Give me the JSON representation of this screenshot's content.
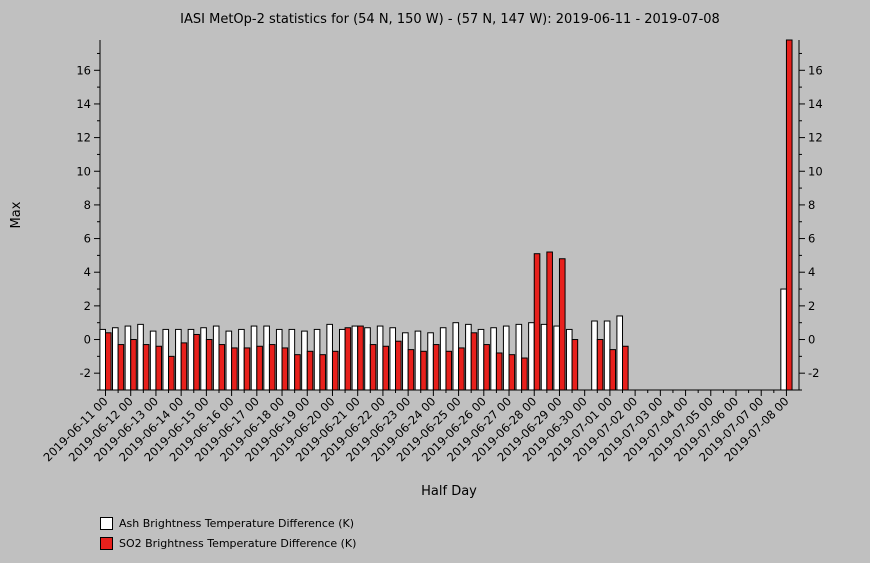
{
  "chart_data": {
    "type": "bar",
    "title": "IASI MetOp-2 statistics for (54 N, 150 W) - (57 N, 147 W): 2019-06-11 - 2019-07-08",
    "xlabel": "Half Day",
    "ylabel": "Max",
    "ylim": [
      -3,
      17.8
    ],
    "yticks": [
      -2,
      0,
      2,
      4,
      6,
      8,
      10,
      12,
      14,
      16
    ],
    "x_tick_labels": [
      "2019-06-11 00",
      "2019-06-12 00",
      "2019-06-13 00",
      "2019-06-14 00",
      "2019-06-15 00",
      "2019-06-16 00",
      "2019-06-17 00",
      "2019-06-18 00",
      "2019-06-19 00",
      "2019-06-20 00",
      "2019-06-21 00",
      "2019-06-22 00",
      "2019-06-23 00",
      "2019-06-24 00",
      "2019-06-25 00",
      "2019-06-26 00",
      "2019-06-27 00",
      "2019-06-28 00",
      "2019-06-29 00",
      "2019-06-30 00",
      "2019-07-01 00",
      "2019-07-02 00",
      "2019-07-03 00",
      "2019-07-04 00",
      "2019-07-05 00",
      "2019-07-06 00",
      "2019-07-07 00",
      "2019-07-08 00"
    ],
    "num_slots": 55,
    "series": [
      {
        "name": "Ash Brightness Temperature Difference (K)",
        "color": "#ffffff",
        "values": [
          0.6,
          0.7,
          0.8,
          0.9,
          0.5,
          0.6,
          0.6,
          0.6,
          0.7,
          0.8,
          0.5,
          0.6,
          0.8,
          0.8,
          0.6,
          0.6,
          0.5,
          0.6,
          0.9,
          0.6,
          0.8,
          0.7,
          0.8,
          0.7,
          0.4,
          0.5,
          0.4,
          0.7,
          1.0,
          0.9,
          0.6,
          0.7,
          0.8,
          0.9,
          1.0,
          0.9,
          0.8,
          0.6,
          null,
          1.1,
          1.1,
          1.4,
          null,
          null,
          null,
          null,
          null,
          null,
          null,
          null,
          null,
          null,
          null,
          null,
          3.0
        ]
      },
      {
        "name": "SO2 Brightness Temperature Difference (K)",
        "color": "#e8201c",
        "values": [
          0.4,
          -0.3,
          0.0,
          -0.3,
          -0.4,
          -1.0,
          -0.2,
          0.3,
          0.0,
          -0.3,
          -0.5,
          -0.5,
          -0.4,
          -0.3,
          -0.5,
          -0.9,
          -0.7,
          -0.9,
          -0.7,
          0.7,
          0.8,
          -0.3,
          -0.4,
          -0.1,
          -0.6,
          -0.7,
          -0.3,
          -0.7,
          -0.5,
          0.4,
          -0.3,
          -0.8,
          -0.9,
          -1.1,
          5.1,
          5.2,
          4.8,
          0.0,
          null,
          0.0,
          -0.6,
          -0.4,
          null,
          null,
          null,
          null,
          null,
          null,
          null,
          null,
          null,
          null,
          null,
          null,
          17.8
        ]
      }
    ]
  }
}
